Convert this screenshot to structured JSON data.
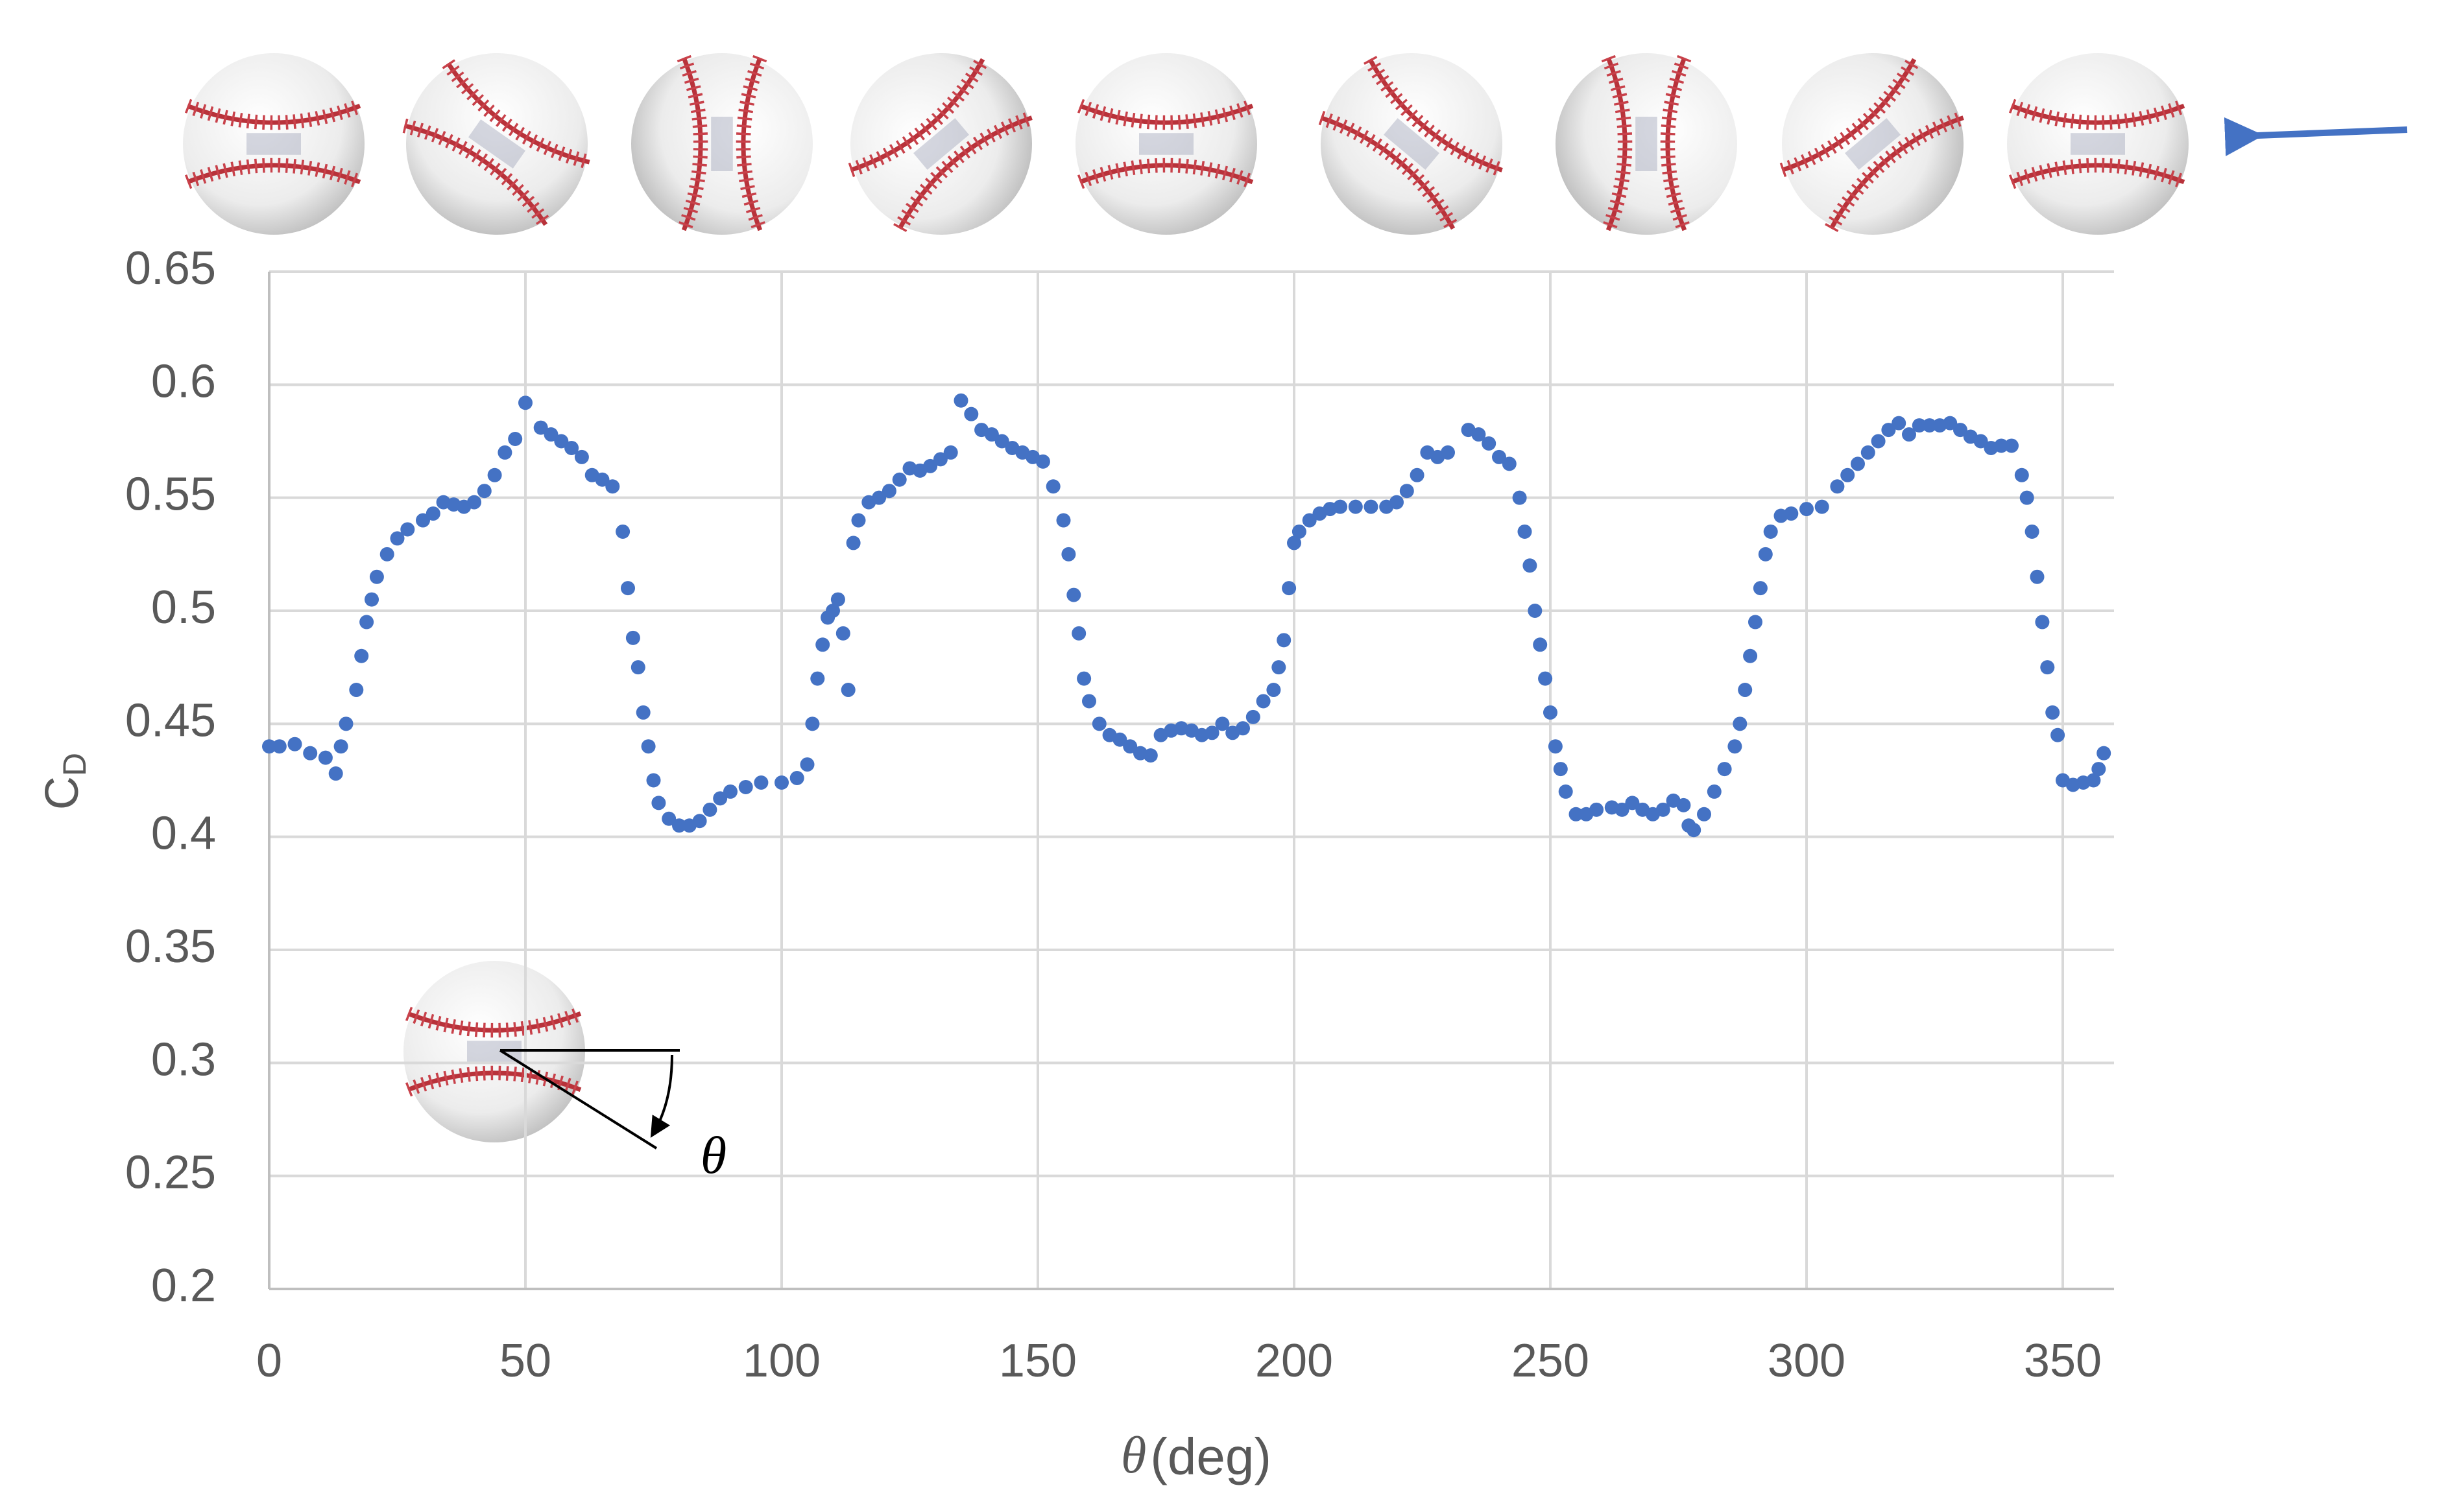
{
  "chart_data": {
    "type": "scatter",
    "ylabel": "C",
    "ylabel_subscript": "D",
    "xlabel_symbol": "θ",
    "xlabel": "(deg)",
    "annotation": "θ",
    "color": "#4472c4",
    "grid": true,
    "xlim": [
      0,
      360
    ],
    "ylim": [
      0.2,
      0.65
    ],
    "xticks": [
      0,
      50,
      100,
      150,
      200,
      250,
      300,
      350
    ],
    "yticks": [
      0.2,
      0.25,
      0.3,
      0.35,
      0.4,
      0.45,
      0.5,
      0.55,
      0.6,
      0.65
    ],
    "x": [
      0,
      2,
      5,
      8,
      11,
      13,
      14,
      15,
      17,
      18,
      19,
      20,
      21,
      23,
      25,
      27,
      30,
      32,
      34,
      36,
      38,
      40,
      42,
      44,
      46,
      48,
      50,
      53,
      55,
      57,
      59,
      61,
      63,
      65,
      67,
      69,
      70,
      71,
      72,
      73,
      74,
      75,
      76,
      78,
      80,
      82,
      84,
      86,
      88,
      90,
      93,
      96,
      100,
      103,
      105,
      106,
      107,
      108,
      109,
      110,
      111,
      112,
      113,
      114,
      115,
      117,
      119,
      121,
      123,
      125,
      127,
      129,
      131,
      133,
      135,
      137,
      139,
      141,
      143,
      145,
      147,
      149,
      151,
      153,
      155,
      156,
      157,
      158,
      159,
      160,
      162,
      164,
      166,
      168,
      170,
      172,
      174,
      176,
      178,
      180,
      182,
      184,
      186,
      188,
      190,
      192,
      194,
      196,
      197,
      198,
      199,
      200,
      201,
      203,
      205,
      207,
      209,
      212,
      215,
      218,
      220,
      222,
      224,
      226,
      228,
      230,
      234,
      236,
      238,
      240,
      242,
      244,
      245,
      246,
      247,
      248,
      249,
      250,
      251,
      252,
      253,
      255,
      257,
      259,
      262,
      264,
      266,
      268,
      270,
      272,
      274,
      276,
      277,
      278,
      280,
      282,
      284,
      286,
      287,
      288,
      289,
      290,
      291,
      292,
      293,
      295,
      297,
      300,
      303,
      306,
      308,
      310,
      312,
      314,
      316,
      318,
      320,
      322,
      324,
      326,
      328,
      330,
      332,
      334,
      336,
      338,
      340,
      342,
      343,
      344,
      345,
      346,
      347,
      348,
      349,
      350,
      352,
      354,
      356,
      357,
      358
    ],
    "values": [
      0.44,
      0.44,
      0.441,
      0.437,
      0.435,
      0.428,
      0.44,
      0.45,
      0.465,
      0.48,
      0.495,
      0.505,
      0.515,
      0.525,
      0.532,
      0.536,
      0.54,
      0.543,
      0.548,
      0.547,
      0.546,
      0.548,
      0.553,
      0.56,
      0.57,
      0.576,
      0.592,
      0.581,
      0.578,
      0.575,
      0.572,
      0.568,
      0.56,
      0.558,
      0.555,
      0.535,
      0.51,
      0.488,
      0.475,
      0.455,
      0.44,
      0.425,
      0.415,
      0.408,
      0.405,
      0.405,
      0.407,
      0.412,
      0.417,
      0.42,
      0.422,
      0.424,
      0.424,
      0.426,
      0.432,
      0.45,
      0.47,
      0.485,
      0.497,
      0.5,
      0.505,
      0.49,
      0.465,
      0.53,
      0.54,
      0.548,
      0.55,
      0.553,
      0.558,
      0.563,
      0.562,
      0.564,
      0.567,
      0.57,
      0.593,
      0.587,
      0.58,
      0.578,
      0.575,
      0.572,
      0.57,
      0.568,
      0.566,
      0.555,
      0.54,
      0.525,
      0.507,
      0.49,
      0.47,
      0.46,
      0.45,
      0.445,
      0.443,
      0.44,
      0.437,
      0.436,
      0.445,
      0.447,
      0.448,
      0.447,
      0.445,
      0.446,
      0.45,
      0.446,
      0.448,
      0.453,
      0.46,
      0.465,
      0.475,
      0.487,
      0.51,
      0.53,
      0.535,
      0.54,
      0.543,
      0.545,
      0.546,
      0.546,
      0.546,
      0.546,
      0.548,
      0.553,
      0.56,
      0.57,
      0.568,
      0.57,
      0.58,
      0.578,
      0.574,
      0.568,
      0.565,
      0.55,
      0.535,
      0.52,
      0.5,
      0.485,
      0.47,
      0.455,
      0.44,
      0.43,
      0.42,
      0.41,
      0.41,
      0.412,
      0.413,
      0.412,
      0.415,
      0.412,
      0.41,
      0.412,
      0.416,
      0.414,
      0.405,
      0.403,
      0.41,
      0.42,
      0.43,
      0.44,
      0.45,
      0.465,
      0.48,
      0.495,
      0.51,
      0.525,
      0.535,
      0.542,
      0.543,
      0.545,
      0.546,
      0.555,
      0.56,
      0.565,
      0.57,
      0.575,
      0.58,
      0.583,
      0.578,
      0.582,
      0.582,
      0.582,
      0.583,
      0.58,
      0.577,
      0.575,
      0.572,
      0.573,
      0.573,
      0.56,
      0.55,
      0.535,
      0.515,
      0.495,
      0.475,
      0.455,
      0.445,
      0.425,
      0.423,
      0.424,
      0.425,
      0.43,
      0.437
    ]
  }
}
